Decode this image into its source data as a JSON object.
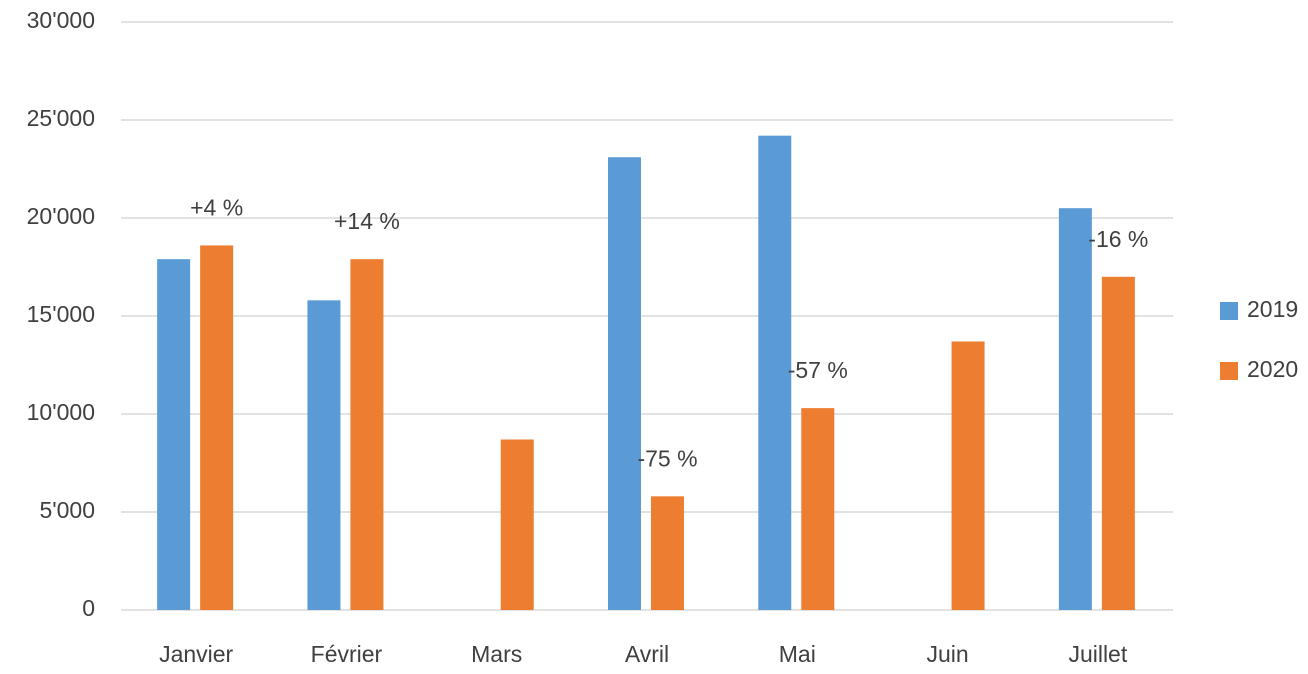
{
  "chart_data": {
    "type": "bar",
    "categories": [
      "Janvier",
      "Février",
      "Mars",
      "Avril",
      "Mai",
      "Juin",
      "Juillet"
    ],
    "series": [
      {
        "name": "2019",
        "color": "#5b9bd5",
        "values": [
          17900,
          15800,
          null,
          23100,
          24200,
          null,
          20500
        ]
      },
      {
        "name": "2020",
        "color": "#ed7d31",
        "values": [
          18600,
          17900,
          8700,
          5800,
          10300,
          13700,
          17000
        ]
      }
    ],
    "annotations": [
      {
        "text": "+4 %",
        "category": "Janvier"
      },
      {
        "text": "+14 %",
        "category": "Février"
      },
      {
        "text": "-75 %",
        "category": "Avril"
      },
      {
        "text": "-57 %",
        "category": "Mai"
      },
      {
        "text": "-16 %",
        "category": "Juillet"
      }
    ],
    "ylim": [
      0,
      30000
    ],
    "yticks": [
      0,
      {
        "value": 5000,
        "label": "5'000"
      },
      {
        "value": 10000,
        "label": "10'000"
      },
      {
        "value": 15000,
        "label": "15'000"
      },
      {
        "value": 20000,
        "label": "20'000"
      },
      {
        "value": 25000,
        "label": "25'000"
      },
      {
        "value": 30000,
        "label": "30'000"
      }
    ],
    "grid": true,
    "legend": "right"
  }
}
